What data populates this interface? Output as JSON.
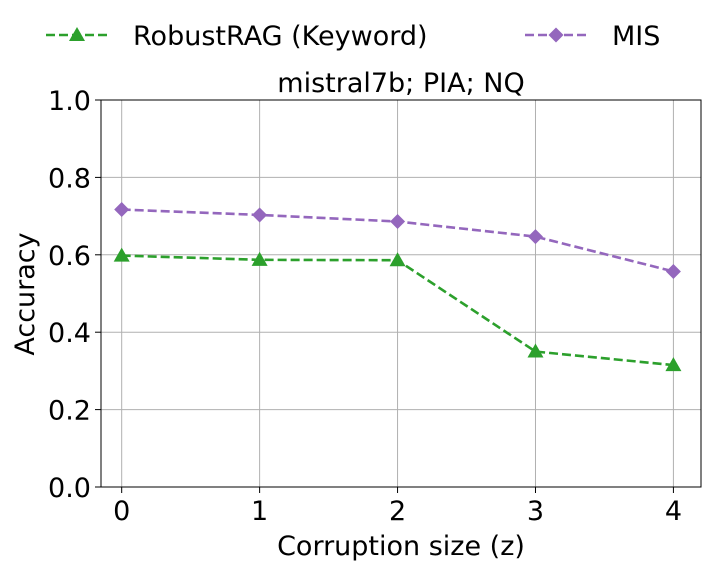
{
  "chart_data": {
    "type": "line",
    "title": "mistral7b; PIA; NQ",
    "xlabel": "Corruption size (z)",
    "ylabel": "Accuracy",
    "x": [
      0,
      1,
      2,
      3,
      4
    ],
    "x_ticks": [
      "0",
      "1",
      "2",
      "3",
      "4"
    ],
    "y_ticks": [
      "0.0",
      "0.2",
      "0.4",
      "0.6",
      "0.8",
      "1.0"
    ],
    "xlim": [
      -0.15,
      4.2
    ],
    "ylim": [
      0.0,
      1.0
    ],
    "grid": true,
    "legend_position": "top",
    "series": [
      {
        "name": "RobustRAG (Keyword)",
        "values": [
          0.598,
          0.587,
          0.586,
          0.35,
          0.315
        ],
        "color": "#2ca02c",
        "marker": "triangle",
        "line_style": "dashed"
      },
      {
        "name": "MIS",
        "values": [
          0.717,
          0.703,
          0.686,
          0.647,
          0.557
        ],
        "color": "#9467bd",
        "marker": "diamond",
        "line_style": "dashed"
      }
    ]
  }
}
